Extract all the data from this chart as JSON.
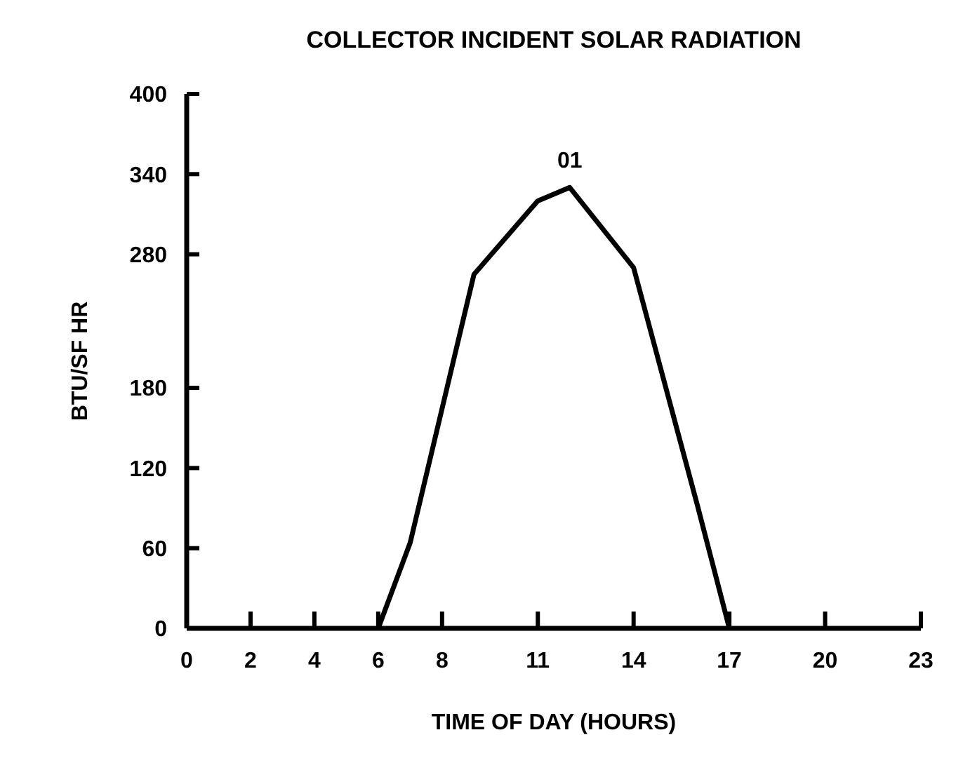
{
  "chart_data": {
    "type": "line",
    "title": "COLLECTOR INCIDENT SOLAR RADIATION",
    "xlabel": "TIME OF DAY (HOURS)",
    "ylabel": "BTU/SF HR",
    "x": [
      6,
      7,
      9,
      11,
      12,
      14,
      16,
      17
    ],
    "series": [
      {
        "color": "#000000",
        "values": [
          0,
          64,
          265,
          320,
          330,
          270,
          92,
          0
        ]
      }
    ],
    "xlim": [
      0,
      23
    ],
    "xticks": [
      0,
      2,
      4,
      6,
      8,
      11,
      14,
      17,
      20,
      23
    ],
    "ylim": [
      0,
      400
    ],
    "yticks": [
      0,
      60,
      120,
      180,
      280,
      340,
      400
    ],
    "annotations": [
      {
        "text": "01",
        "x": 12,
        "y": 330
      }
    ],
    "grid": false,
    "marker": "none",
    "line_style": "solid"
  }
}
